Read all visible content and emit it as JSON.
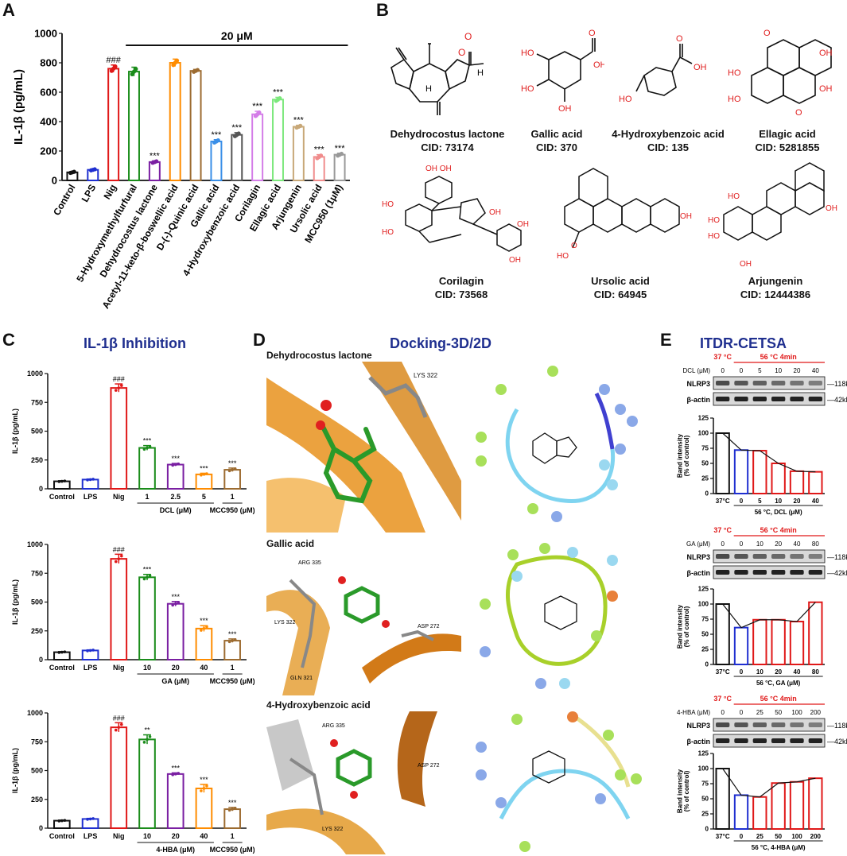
{
  "panels": {
    "A": "A",
    "B": "B",
    "C": "C",
    "D": "D",
    "E": "E"
  },
  "chart_data": [
    {
      "id": "A",
      "type": "bar",
      "ylabel": "IL-1β (pg/mL)",
      "yticks": [
        0,
        200,
        400,
        600,
        800,
        1000
      ],
      "ylim": [
        0,
        1000
      ],
      "bracket_label": "20 μM",
      "categories": [
        "Control",
        "LPS",
        "Nig",
        "5-Hydroxymethylfurfural",
        "Dehydrocostus lactone",
        "Acetyl-11-keto-β-boswellic acid",
        "D-(-)-Quinic acid",
        "Gallic acid",
        "4-Hydroxybenzoic acid",
        "Corilagin",
        "Ellagic acid",
        "Arjungenin",
        "Ursolic acid",
        "MCC950 (1μM)"
      ],
      "values": [
        55,
        72,
        760,
        740,
        125,
        800,
        745,
        265,
        310,
        450,
        550,
        365,
        160,
        175
      ],
      "errors": [
        6,
        6,
        25,
        30,
        8,
        25,
        10,
        12,
        15,
        20,
        15,
        10,
        15,
        10
      ],
      "colors": [
        "#111111",
        "#1f2fd0",
        "#e01818",
        "#1a8c1a",
        "#7a1fa2",
        "#ff8c00",
        "#9c6b30",
        "#3a8fe8",
        "#555555",
        "#d47de8",
        "#7ce87c",
        "#c8a878",
        "#f08c8c",
        "#999999"
      ],
      "labels": [
        "",
        "",
        "###",
        "",
        "***",
        "",
        "",
        "***",
        "***",
        "***",
        "***",
        "***",
        "***",
        "***"
      ]
    },
    {
      "id": "C1",
      "type": "bar",
      "ylabel": "IL-1β (pg/mL)",
      "yticks": [
        0,
        250,
        500,
        750,
        1000
      ],
      "ylim": [
        0,
        1000
      ],
      "categories": [
        "Control",
        "LPS",
        "Nig",
        "1",
        "2.5",
        "5",
        "1"
      ],
      "values": [
        65,
        80,
        875,
        355,
        210,
        125,
        165
      ],
      "errors": [
        5,
        5,
        35,
        20,
        10,
        10,
        15
      ],
      "colors": [
        "#111111",
        "#1f2fd0",
        "#e01818",
        "#1a8c1a",
        "#7a1fa2",
        "#ff8c00",
        "#9c6b30"
      ],
      "labels": [
        "",
        "",
        "###",
        "***",
        "***",
        "***",
        "***"
      ],
      "groups": [
        {
          "label": "DCL (μM)",
          "from": 3,
          "to": 5
        },
        {
          "label": "MCC950 (μM)",
          "from": 6,
          "to": 6
        }
      ]
    },
    {
      "id": "C2",
      "type": "bar",
      "ylabel": "IL-1β (pg/mL)",
      "yticks": [
        0,
        250,
        500,
        750,
        1000
      ],
      "ylim": [
        0,
        1000
      ],
      "categories": [
        "Control",
        "LPS",
        "Nig",
        "10",
        "20",
        "40",
        "1"
      ],
      "values": [
        65,
        80,
        875,
        715,
        485,
        270,
        165
      ],
      "errors": [
        5,
        5,
        40,
        25,
        20,
        25,
        15
      ],
      "colors": [
        "#111111",
        "#1f2fd0",
        "#e01818",
        "#1a8c1a",
        "#7a1fa2",
        "#ff8c00",
        "#9c6b30"
      ],
      "labels": [
        "",
        "",
        "###",
        "***",
        "***",
        "***",
        "***"
      ],
      "groups": [
        {
          "label": "GA (μM)",
          "from": 3,
          "to": 5
        },
        {
          "label": "MCC950 (μM)",
          "from": 6,
          "to": 6
        }
      ]
    },
    {
      "id": "C3",
      "type": "bar",
      "ylabel": "IL-1β (pg/mL)",
      "yticks": [
        0,
        250,
        500,
        750,
        1000
      ],
      "ylim": [
        0,
        1000
      ],
      "categories": [
        "Control",
        "LPS",
        "Nig",
        "10",
        "20",
        "40",
        "1"
      ],
      "values": [
        65,
        80,
        875,
        770,
        470,
        345,
        165
      ],
      "errors": [
        5,
        5,
        40,
        40,
        10,
        35,
        15
      ],
      "colors": [
        "#111111",
        "#1f2fd0",
        "#e01818",
        "#1a8c1a",
        "#7a1fa2",
        "#ff8c00",
        "#9c6b30"
      ],
      "labels": [
        "",
        "",
        "###",
        "**",
        "***",
        "***",
        "***"
      ],
      "groups": [
        {
          "label": "4-HBA (μM)",
          "from": 3,
          "to": 5
        },
        {
          "label": "MCC950 (μM)",
          "from": 6,
          "to": 6
        }
      ]
    },
    {
      "id": "E1",
      "type": "bar",
      "ylabel": "Band intensity (% of control)",
      "yticks": [
        0,
        25,
        50,
        75,
        100,
        125
      ],
      "ylim": [
        0,
        125
      ],
      "categories": [
        "37°C",
        "0",
        "5",
        "10",
        "20",
        "40"
      ],
      "values": [
        100,
        72,
        71,
        50,
        37,
        36
      ],
      "colors": [
        "#111111",
        "#1f2fd0",
        "#e01818",
        "#e01818",
        "#e01818",
        "#e01818"
      ],
      "xgroup_label": "56 °C, DCL (μM)"
    },
    {
      "id": "E2",
      "type": "bar",
      "ylabel": "Band intensity (% of control)",
      "yticks": [
        0,
        25,
        50,
        75,
        100,
        125
      ],
      "ylim": [
        0,
        125
      ],
      "categories": [
        "37°C",
        "0",
        "10",
        "20",
        "40",
        "80"
      ],
      "values": [
        100,
        61,
        74,
        74,
        71,
        103
      ],
      "colors": [
        "#111111",
        "#1f2fd0",
        "#e01818",
        "#e01818",
        "#e01818",
        "#e01818"
      ],
      "xgroup_label": "56 °C, GA (μM)"
    },
    {
      "id": "E3",
      "type": "bar",
      "ylabel": "Band intensity (% of control)",
      "yticks": [
        0,
        25,
        50,
        75,
        100,
        125
      ],
      "ylim": [
        0,
        125
      ],
      "categories": [
        "37°C",
        "0",
        "25",
        "50",
        "100",
        "200"
      ],
      "values": [
        100,
        56,
        53,
        76,
        78,
        84
      ],
      "colors": [
        "#111111",
        "#1f2fd0",
        "#e01818",
        "#e01818",
        "#e01818",
        "#e01818"
      ],
      "xgroup_label": "56 °C, 4-HBA (μM)"
    }
  ],
  "molecules": [
    {
      "name": "Dehydrocostus lactone",
      "cid": "CID: 73174"
    },
    {
      "name": "Gallic acid",
      "cid": "CID: 370"
    },
    {
      "name": "4-Hydroxybenzoic acid",
      "cid": "CID: 135"
    },
    {
      "name": "Ellagic acid",
      "cid": "CID: 5281855"
    },
    {
      "name": "Corilagin",
      "cid": "CID: 73568"
    },
    {
      "name": "Ursolic acid",
      "cid": "CID: 64945"
    },
    {
      "name": "Arjungenin",
      "cid": "CID: 12444386"
    }
  ],
  "titles": {
    "c": "IL-1β Inhibition",
    "d": "Docking-3D/2D",
    "e": "ITDR-CETSA"
  },
  "docking": [
    {
      "name": "Dehydrocostus lactone",
      "residues": [
        "LYS 322"
      ]
    },
    {
      "name": "Gallic acid",
      "residues": [
        "ARG 335",
        "ASP 272",
        "LYS 322",
        "GLN 321"
      ]
    },
    {
      "name": "4-Hydroxybenzoic acid",
      "residues": [
        "ARG 335",
        "ASP 272",
        "LYS 322"
      ]
    }
  ],
  "blots": [
    {
      "t37": "37 °C",
      "t56": "56 °C 4min",
      "dose_label": "DCL (μM)",
      "doses": [
        "0",
        "0",
        "5",
        "10",
        "20",
        "40"
      ],
      "target": "NLRP3",
      "loading": "β-actin",
      "kd_target": "118kD",
      "kd_loading": "42kD"
    },
    {
      "t37": "37 °C",
      "t56": "56 °C 4min",
      "dose_label": "GA (μM)",
      "doses": [
        "0",
        "0",
        "10",
        "20",
        "40",
        "80"
      ],
      "target": "NLRP3",
      "loading": "β-actin",
      "kd_target": "118kD",
      "kd_loading": "42kD"
    },
    {
      "t37": "37 °C",
      "t56": "56 °C 4min",
      "dose_label": "4-HBA (μM)",
      "doses": [
        "0",
        "0",
        "25",
        "50",
        "100",
        "200"
      ],
      "target": "NLRP3",
      "loading": "β-actin",
      "kd_target": "118kD",
      "kd_loading": "42kD"
    }
  ],
  "colors": {
    "accent_blue": "#1f2f8f",
    "red": "#e01818",
    "oxygen": "#e02020"
  }
}
